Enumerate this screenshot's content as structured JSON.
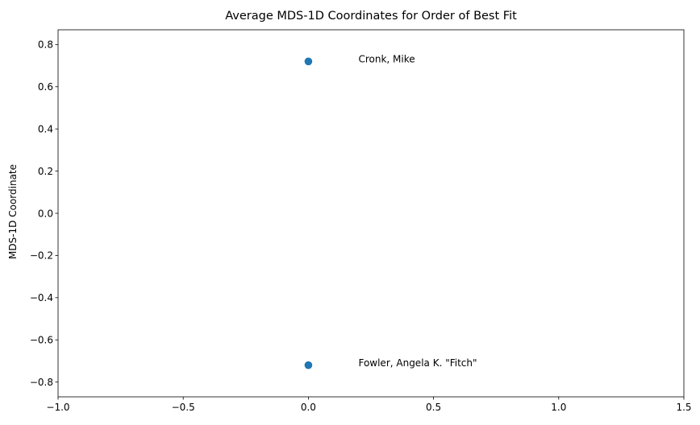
{
  "chart_data": {
    "type": "scatter",
    "title": "Average MDS-1D Coordinates for Order of Best Fit",
    "xlabel": "",
    "ylabel": "MDS-1D Coordinate",
    "xlim": [
      -1.0,
      1.5
    ],
    "ylim": [
      -0.87,
      0.87
    ],
    "xticks": [
      -1.0,
      -0.5,
      0.0,
      0.5,
      1.0,
      1.5
    ],
    "xtick_labels": [
      "−1.0",
      "−0.5",
      "0.0",
      "0.5",
      "1.0",
      "1.5"
    ],
    "yticks": [
      0.8,
      0.6,
      0.4,
      0.2,
      0.0,
      -0.2,
      -0.4,
      -0.6,
      -0.8
    ],
    "ytick_labels": [
      "0.8",
      "0.6",
      "0.4",
      "0.2",
      "0.0",
      "−0.2",
      "−0.4",
      "−0.6",
      "−0.8"
    ],
    "grid": false,
    "marker_color": "#1f77b4",
    "points": [
      {
        "x": 0.0,
        "y": 0.72,
        "label": "Cronk, Mike",
        "label_x": 0.2,
        "label_y": 0.73
      },
      {
        "x": 0.0,
        "y": -0.72,
        "label": "Fowler, Angela K. \"Fitch\"",
        "label_x": 0.2,
        "label_y": -0.71
      }
    ]
  }
}
